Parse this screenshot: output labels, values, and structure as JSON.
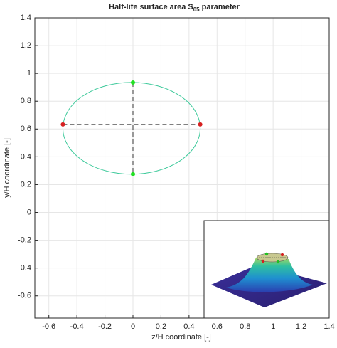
{
  "chart_data": {
    "type": "ellipse-plot",
    "title": "Half-life surface area S",
    "title_subscript": "05",
    "title_suffix": " parameter",
    "x_label": "z/H coordinate [-]",
    "y_label": "y/H coordinate [-]",
    "xlim": [
      -0.7,
      1.4
    ],
    "ylim": [
      -0.76,
      1.4
    ],
    "xticks": [
      -0.6,
      -0.4,
      -0.2,
      0,
      0.2,
      0.4,
      0.6,
      0.8,
      1,
      1.2,
      1.4
    ],
    "yticks": [
      -0.6,
      -0.4,
      -0.2,
      0,
      0.2,
      0.4,
      0.6,
      0.8,
      1,
      1.2,
      1.4
    ],
    "grid": true,
    "ellipse": {
      "color": "#3cc99a",
      "cx": -0.01,
      "cy": 0.605,
      "rx": 0.49,
      "ry": 0.33
    },
    "series": [
      {
        "color": "#d62020",
        "x": [
          -0.5,
          0.48
        ],
        "values": [
          0.633,
          0.633
        ]
      },
      {
        "color": "#22e022",
        "x": [
          0,
          0
        ],
        "values": [
          0.934,
          0.276
        ]
      }
    ]
  }
}
